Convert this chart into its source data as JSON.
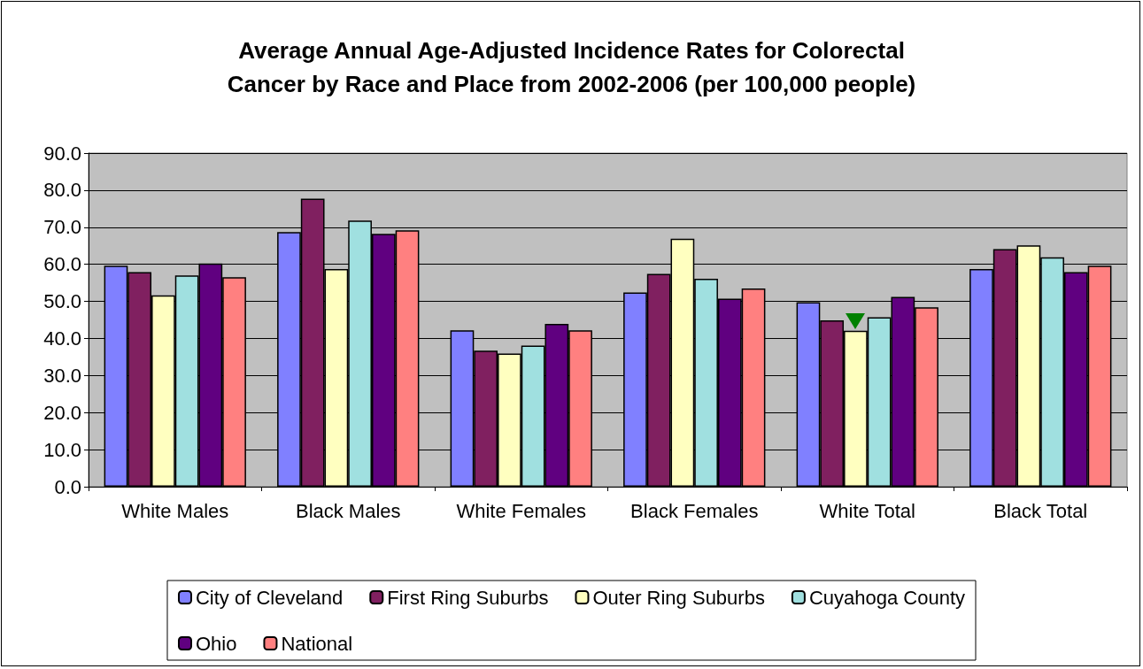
{
  "chart_data": {
    "type": "bar",
    "title": "Average Annual Age-Adjusted Incidence Rates for Colorectal\nCancer by Race and Place from 2002-2006 (per 100,000 people)",
    "categories": [
      "White Males",
      "Black Males",
      "White Females",
      "Black Females",
      "White Total",
      "Black Total"
    ],
    "series": [
      {
        "name": "City of Cleveland",
        "color": "#8080ff",
        "values": [
          59.6,
          68.7,
          42.2,
          52.4,
          49.8,
          58.7
        ]
      },
      {
        "name": "First Ring Suburbs",
        "color": "#802060",
        "values": [
          57.9,
          77.7,
          36.7,
          57.4,
          44.9,
          64.1
        ]
      },
      {
        "name": "Outer Ring Suburbs",
        "color": "#ffffc0",
        "values": [
          51.6,
          58.7,
          35.9,
          66.9,
          42.1,
          65.1
        ]
      },
      {
        "name": "Cuyahoga County",
        "color": "#a0e0e0",
        "values": [
          57.0,
          71.8,
          38.1,
          56.1,
          45.7,
          61.9
        ]
      },
      {
        "name": "Ohio",
        "color": "#600080",
        "values": [
          60.2,
          68.2,
          43.9,
          50.7,
          51.2,
          57.9
        ]
      },
      {
        "name": "National",
        "color": "#ff8080",
        "values": [
          56.5,
          69.2,
          42.2,
          53.5,
          48.4,
          59.6
        ]
      }
    ],
    "ylim": [
      0,
      90
    ],
    "yticks": [
      {
        "value": 0,
        "label": "0.0"
      },
      {
        "value": 10,
        "label": "10.0"
      },
      {
        "value": 20,
        "label": "20.0"
      },
      {
        "value": 30,
        "label": "30.0"
      },
      {
        "value": 40,
        "label": "40.0"
      },
      {
        "value": 50,
        "label": "50.0"
      },
      {
        "value": 60,
        "label": "60.0"
      },
      {
        "value": 70,
        "label": "70.0"
      },
      {
        "value": 80,
        "label": "80.0"
      },
      {
        "value": 90,
        "label": "90.0"
      }
    ],
    "grid": "y",
    "legend": "bottom"
  }
}
